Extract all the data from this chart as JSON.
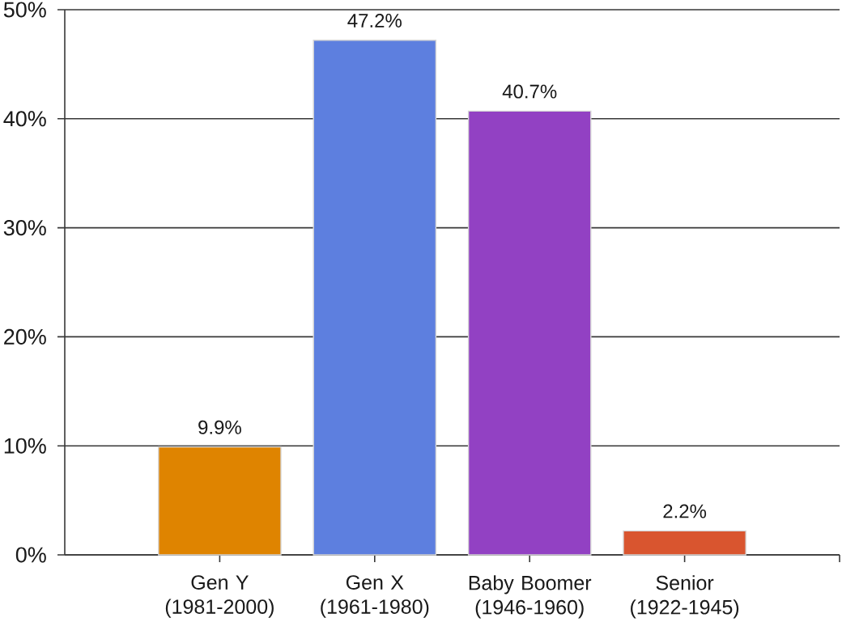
{
  "chart_data": {
    "type": "bar",
    "categories": [
      "Gen Y (1981-2000)",
      "Gen X (1961-1980)",
      "Baby Boomer (1946-1960)",
      "Senior (1922-1945)"
    ],
    "values": [
      9.9,
      47.2,
      40.7,
      2.2
    ],
    "colors": [
      "#df8400",
      "#5d7fdf",
      "#9241c3",
      "#d9552f"
    ],
    "value_labels": [
      "9.9%",
      "47.2%",
      "40.7%",
      "2.2%"
    ],
    "ylim": [
      0,
      50
    ],
    "yticks": [
      {
        "value": 0,
        "label": "0%"
      },
      {
        "value": 10,
        "label": "10%"
      },
      {
        "value": 20,
        "label": "20%"
      },
      {
        "value": 30,
        "label": "30%"
      },
      {
        "value": 40,
        "label": "40%"
      },
      {
        "value": 50,
        "label": "50%"
      }
    ],
    "grid": "y"
  }
}
